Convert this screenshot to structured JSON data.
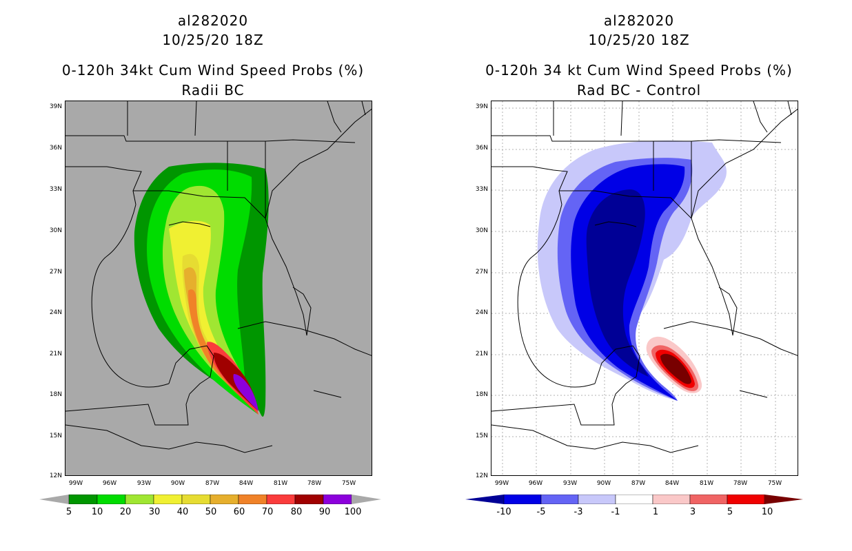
{
  "left_panel": {
    "storm_id": "al282020",
    "datetime": "10/25/20 18Z",
    "title": "0-120h 34kt Cum Wind Speed Probs (%)",
    "subtitle": "Radii BC",
    "lat_labels": [
      "39N",
      "36N",
      "33N",
      "30N",
      "27N",
      "24N",
      "21N",
      "18N",
      "15N",
      "12N"
    ],
    "lon_labels": [
      "99W",
      "96W",
      "93W",
      "90W",
      "87W",
      "84W",
      "81W",
      "78W",
      "75W"
    ],
    "colorbar": {
      "labels": [
        "5",
        "10",
        "20",
        "30",
        "40",
        "50",
        "60",
        "70",
        "80",
        "90",
        "100"
      ],
      "colors": [
        "#009600",
        "#00dc00",
        "#a0e632",
        "#f0f032",
        "#e6dc32",
        "#e6af2d",
        "#f08228",
        "#fa3c3c",
        "#a00000",
        "#8c00dc"
      ],
      "below_color": "#a9a9a9",
      "above_color": "#a9a9a9"
    }
  },
  "right_panel": {
    "storm_id": "al282020",
    "datetime": "10/25/20 18Z",
    "title": "0-120h 34 kt Cum Wind Speed Probs (%)",
    "subtitle": "Rad BC - Control",
    "lat_labels": [
      "39N",
      "36N",
      "33N",
      "30N",
      "27N",
      "24N",
      "21N",
      "18N",
      "15N",
      "12N"
    ],
    "lon_labels": [
      "99W",
      "96W",
      "93W",
      "90W",
      "87W",
      "84W",
      "81W",
      "78W",
      "75W"
    ],
    "colorbar": {
      "labels": [
        "-10",
        "-5",
        "-3",
        "-1",
        "1",
        "3",
        "5",
        "10"
      ],
      "colors": [
        "#0000e6",
        "#6464f5",
        "#c8c8fa",
        "#ffffff",
        "#fac8c8",
        "#f06464",
        "#f00000"
      ],
      "below_color": "#000096",
      "above_color": "#780000"
    }
  }
}
